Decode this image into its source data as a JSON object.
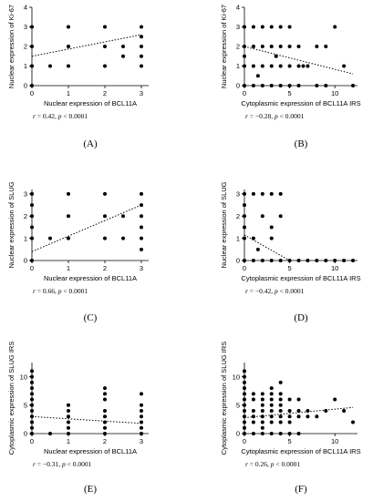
{
  "chart_data": [
    {
      "type": "scatter",
      "panel_label": "(A)",
      "xlabel": "Nuclear expression of BCL11A",
      "ylabel": "Nuclear expression of Ki-67",
      "stats": {
        "r_text": "r = 0.42, ",
        "p_text": "p < 0.0001"
      },
      "xlim": [
        0,
        3.2
      ],
      "ylim": [
        0,
        4
      ],
      "xticks": [
        "0",
        "1",
        "2",
        "3"
      ],
      "yticks": [
        "0",
        "1",
        "2",
        "3",
        "4"
      ],
      "points": [
        [
          0,
          0
        ],
        [
          0,
          1
        ],
        [
          0,
          2
        ],
        [
          0,
          3
        ],
        [
          0.5,
          1
        ],
        [
          1,
          1
        ],
        [
          1,
          2
        ],
        [
          1,
          3
        ],
        [
          2,
          1
        ],
        [
          2,
          2
        ],
        [
          2,
          3
        ],
        [
          2.5,
          1.5
        ],
        [
          2.5,
          2
        ],
        [
          3,
          1
        ],
        [
          3,
          1.5
        ],
        [
          3,
          2
        ],
        [
          3,
          2.5
        ],
        [
          3,
          3
        ]
      ],
      "trendline": [
        [
          0,
          1.5
        ],
        [
          3,
          2.6
        ]
      ]
    },
    {
      "type": "scatter",
      "panel_label": "(B)",
      "xlabel": "Cytoplasmic expression of BCL11A IRS",
      "ylabel": "Nuclear expression of Ki-67",
      "stats": {
        "r_text": "r = −0.28, ",
        "p_text": "p < 0.0001"
      },
      "xlim": [
        0,
        12.5
      ],
      "ylim": [
        0,
        4
      ],
      "xticks": [
        "0",
        "5",
        "10"
      ],
      "yticks": [
        "0",
        "1",
        "2",
        "3",
        "4"
      ],
      "points": [
        [
          0,
          0
        ],
        [
          0,
          1
        ],
        [
          0,
          1.5
        ],
        [
          0,
          2
        ],
        [
          0,
          3
        ],
        [
          1,
          0
        ],
        [
          1,
          1
        ],
        [
          1,
          2
        ],
        [
          1,
          3
        ],
        [
          2,
          0
        ],
        [
          2,
          1
        ],
        [
          2,
          2
        ],
        [
          2,
          3
        ],
        [
          3,
          0
        ],
        [
          3,
          1
        ],
        [
          3,
          2
        ],
        [
          3,
          3
        ],
        [
          4,
          0
        ],
        [
          4,
          1
        ],
        [
          4,
          2
        ],
        [
          4,
          3
        ],
        [
          5,
          0
        ],
        [
          5,
          1
        ],
        [
          5,
          2
        ],
        [
          5,
          3
        ],
        [
          6,
          0
        ],
        [
          6,
          1
        ],
        [
          6,
          2
        ],
        [
          7,
          1
        ],
        [
          8,
          0
        ],
        [
          8,
          2
        ],
        [
          9,
          0
        ],
        [
          9,
          2
        ],
        [
          10,
          3
        ],
        [
          11,
          1
        ],
        [
          12,
          0
        ],
        [
          1.5,
          0.5
        ],
        [
          3.5,
          1.5
        ],
        [
          6.5,
          1
        ]
      ],
      "trendline": [
        [
          0,
          2
        ],
        [
          12,
          0.6
        ]
      ]
    },
    {
      "type": "scatter",
      "panel_label": "(C)",
      "xlabel": "Nuclear expression of BCL11A",
      "ylabel": "Nuclear expression of SLUG",
      "stats": {
        "r_text": "r = 0.66, ",
        "p_text": "p < 0.0001"
      },
      "xlim": [
        0,
        3.2
      ],
      "ylim": [
        0,
        3.2
      ],
      "xticks": [
        "0",
        "1",
        "2",
        "3"
      ],
      "yticks": [
        "0",
        "1",
        "2",
        "3"
      ],
      "points": [
        [
          0,
          0
        ],
        [
          0,
          1
        ],
        [
          0,
          1.5
        ],
        [
          0,
          2
        ],
        [
          0,
          2.5
        ],
        [
          0,
          3
        ],
        [
          0.5,
          1
        ],
        [
          1,
          1
        ],
        [
          1,
          2
        ],
        [
          1,
          3
        ],
        [
          2,
          1
        ],
        [
          2,
          2
        ],
        [
          2,
          3
        ],
        [
          2.5,
          1
        ],
        [
          2.5,
          2
        ],
        [
          3,
          0.5
        ],
        [
          3,
          1
        ],
        [
          3,
          1.5
        ],
        [
          3,
          2
        ],
        [
          3,
          2.5
        ],
        [
          3,
          3
        ]
      ],
      "trendline": [
        [
          0,
          0.4
        ],
        [
          3,
          2.5
        ]
      ]
    },
    {
      "type": "scatter",
      "panel_label": "(D)",
      "xlabel": "Cytoplasmic expression of BCL11A IRS",
      "ylabel": "Nuclear expression of SLUG",
      "stats": {
        "r_text": "r = −0.42, ",
        "p_text": "p < 0.0001"
      },
      "xlim": [
        0,
        12.5
      ],
      "ylim": [
        0,
        3.2
      ],
      "xticks": [
        "0",
        "5",
        "10"
      ],
      "yticks": [
        "0",
        "1",
        "2",
        "3"
      ],
      "points": [
        [
          0,
          0
        ],
        [
          0,
          1
        ],
        [
          0,
          1.5
        ],
        [
          0,
          2
        ],
        [
          0,
          2.5
        ],
        [
          0,
          3
        ],
        [
          1,
          0
        ],
        [
          1,
          1
        ],
        [
          1,
          3
        ],
        [
          2,
          0
        ],
        [
          2,
          2
        ],
        [
          2,
          3
        ],
        [
          3,
          0
        ],
        [
          3,
          1
        ],
        [
          3,
          3
        ],
        [
          4,
          0
        ],
        [
          4,
          2
        ],
        [
          4,
          3
        ],
        [
          5,
          0
        ],
        [
          6,
          0
        ],
        [
          7,
          0
        ],
        [
          8,
          0
        ],
        [
          9,
          0
        ],
        [
          10,
          0
        ],
        [
          11,
          0
        ],
        [
          12,
          0
        ],
        [
          3,
          1.5
        ],
        [
          1.5,
          0.5
        ]
      ],
      "trendline": [
        [
          0,
          1.15
        ],
        [
          5,
          0
        ]
      ]
    },
    {
      "type": "scatter",
      "panel_label": "(E)",
      "xlabel": "Nuclear expression of BCL11A",
      "ylabel": "Cytoplasmic expression of SLUG IRS",
      "stats": {
        "r_text": "r = −0.31, ",
        "p_text": "p < 0.0001"
      },
      "xlim": [
        0,
        3.2
      ],
      "ylim": [
        0,
        12.5
      ],
      "xticks": [
        "0",
        "1",
        "2",
        "3"
      ],
      "yticks": [
        "0",
        "5",
        "10"
      ],
      "points": [
        [
          0,
          0
        ],
        [
          0,
          1
        ],
        [
          0,
          2
        ],
        [
          0,
          3
        ],
        [
          0,
          4
        ],
        [
          0,
          5
        ],
        [
          0,
          6
        ],
        [
          0,
          7
        ],
        [
          0,
          8
        ],
        [
          0,
          9
        ],
        [
          0,
          10
        ],
        [
          0,
          11
        ],
        [
          0.5,
          0
        ],
        [
          1,
          0
        ],
        [
          1,
          1
        ],
        [
          1,
          2
        ],
        [
          1,
          3
        ],
        [
          1,
          4
        ],
        [
          1,
          5
        ],
        [
          2,
          0
        ],
        [
          2,
          1
        ],
        [
          2,
          2
        ],
        [
          2,
          3
        ],
        [
          2,
          4
        ],
        [
          2,
          6
        ],
        [
          2,
          7
        ],
        [
          2,
          8
        ],
        [
          3,
          0
        ],
        [
          3,
          1
        ],
        [
          3,
          2
        ],
        [
          3,
          3
        ],
        [
          3,
          4
        ],
        [
          3,
          5
        ],
        [
          3,
          7
        ]
      ],
      "trendline": [
        [
          0,
          3
        ],
        [
          3,
          1.8
        ]
      ]
    },
    {
      "type": "scatter",
      "panel_label": "(F)",
      "xlabel": "Cytoplasmic expression of BCL11A IRS",
      "ylabel": "Cytoplasmic expression of SLUG IRS",
      "stats": {
        "r_text": "r = 0.26, ",
        "p_text": "p < 0.0001"
      },
      "xlim": [
        0,
        12.5
      ],
      "ylim": [
        0,
        12.5
      ],
      "xticks": [
        "0",
        "5",
        "10"
      ],
      "yticks": [
        "0",
        "5",
        "10"
      ],
      "points": [
        [
          0,
          0
        ],
        [
          0,
          1
        ],
        [
          0,
          2
        ],
        [
          0,
          3
        ],
        [
          0,
          4
        ],
        [
          0,
          5
        ],
        [
          0,
          6
        ],
        [
          0,
          7
        ],
        [
          0,
          8
        ],
        [
          0,
          9
        ],
        [
          0,
          10
        ],
        [
          0,
          11
        ],
        [
          1,
          0
        ],
        [
          1,
          2
        ],
        [
          1,
          3
        ],
        [
          1,
          4
        ],
        [
          1,
          6
        ],
        [
          1,
          7
        ],
        [
          2,
          0
        ],
        [
          2,
          1
        ],
        [
          2,
          2
        ],
        [
          2,
          3
        ],
        [
          2,
          4
        ],
        [
          2,
          5
        ],
        [
          2,
          6
        ],
        [
          2,
          7
        ],
        [
          3,
          0
        ],
        [
          3,
          2
        ],
        [
          3,
          3
        ],
        [
          3,
          4
        ],
        [
          3,
          5
        ],
        [
          3,
          6
        ],
        [
          3,
          7
        ],
        [
          3,
          8
        ],
        [
          4,
          0
        ],
        [
          4,
          2
        ],
        [
          4,
          3
        ],
        [
          4,
          4
        ],
        [
          4,
          5
        ],
        [
          4,
          6
        ],
        [
          4,
          7
        ],
        [
          4,
          9
        ],
        [
          5,
          0
        ],
        [
          5,
          2
        ],
        [
          5,
          3
        ],
        [
          5,
          4
        ],
        [
          5,
          6
        ],
        [
          6,
          0
        ],
        [
          6,
          3
        ],
        [
          6,
          4
        ],
        [
          6,
          6
        ],
        [
          7,
          3
        ],
        [
          7,
          4
        ],
        [
          8,
          3
        ],
        [
          9,
          4
        ],
        [
          10,
          6
        ],
        [
          11,
          4
        ],
        [
          12,
          2
        ]
      ],
      "trendline": [
        [
          0,
          2.8
        ],
        [
          12,
          4.6
        ]
      ]
    }
  ]
}
